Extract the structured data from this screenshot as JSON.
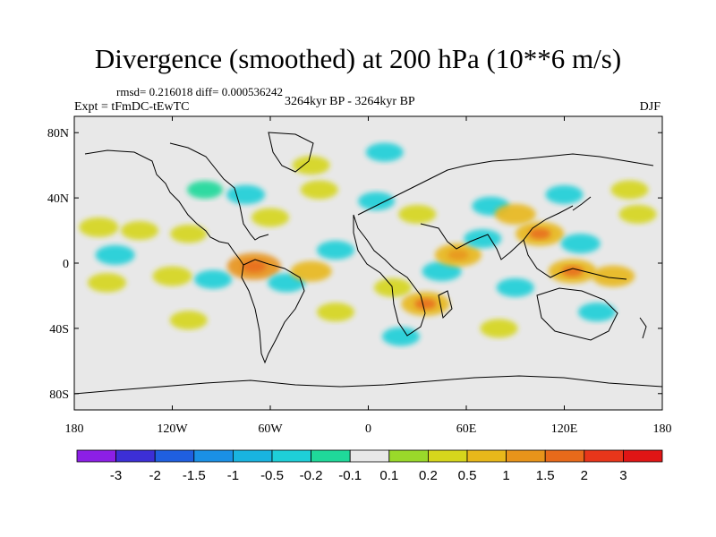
{
  "title": "Divergence (smoothed) at 200 hPa (10**6 m/s)",
  "stats": "rmsd= 0.216018  diff= 0.000536242",
  "experiment": "Expt = tFmDC-tEwTC",
  "period": "3264kyr BP - 3264kyr BP",
  "season": "DJF",
  "chart_data": {
    "type": "heatmap",
    "projection": "cylindrical equidistant",
    "xlim": [
      -180,
      180
    ],
    "ylim": [
      -90,
      90
    ],
    "x_ticks": [
      {
        "value": -180,
        "label": "180"
      },
      {
        "value": -120,
        "label": "120W"
      },
      {
        "value": -60,
        "label": "60W"
      },
      {
        "value": 0,
        "label": "0"
      },
      {
        "value": 60,
        "label": "60E"
      },
      {
        "value": 120,
        "label": "120E"
      },
      {
        "value": 180,
        "label": "180"
      }
    ],
    "y_ticks": [
      {
        "value": 80,
        "label": "80N"
      },
      {
        "value": 40,
        "label": "40N"
      },
      {
        "value": 0,
        "label": "0"
      },
      {
        "value": -40,
        "label": "40S"
      },
      {
        "value": -80,
        "label": "80S"
      }
    ],
    "colorbar": {
      "levels": [
        "-3",
        "-2",
        "-1.5",
        "-1",
        "-0.5",
        "-0.2",
        "-0.1",
        "0.1",
        "0.2",
        "0.5",
        "1",
        "1.5",
        "2",
        "3"
      ],
      "colors": [
        "#8c1fe6",
        "#3c2fd6",
        "#1f5fe0",
        "#1a90e6",
        "#19b4e0",
        "#1ecfd8",
        "#1fd99a",
        "#e8e8e8",
        "#9ad92a",
        "#d6d61c",
        "#e8b81a",
        "#e8941a",
        "#e86a1a",
        "#e8361a",
        "#e01515"
      ]
    },
    "features": [
      {
        "lon": -165,
        "lat": 22,
        "value": 0.4
      },
      {
        "lon": -140,
        "lat": 20,
        "value": 0.3
      },
      {
        "lon": -110,
        "lat": 18,
        "value": 0.25
      },
      {
        "lon": -155,
        "lat": 5,
        "value": -0.4
      },
      {
        "lon": -160,
        "lat": -12,
        "value": 0.35
      },
      {
        "lon": -120,
        "lat": -8,
        "value": 0.4
      },
      {
        "lon": -95,
        "lat": -10,
        "value": -0.3
      },
      {
        "lon": -70,
        "lat": -2,
        "value": 1.2
      },
      {
        "lon": -50,
        "lat": -12,
        "value": -0.3
      },
      {
        "lon": -35,
        "lat": -5,
        "value": 0.5
      },
      {
        "lon": -20,
        "lat": 8,
        "value": -0.3
      },
      {
        "lon": -60,
        "lat": 28,
        "value": 0.3
      },
      {
        "lon": -75,
        "lat": 42,
        "value": -0.35
      },
      {
        "lon": -100,
        "lat": 45,
        "value": -0.2
      },
      {
        "lon": -30,
        "lat": 45,
        "value": 0.3
      },
      {
        "lon": -35,
        "lat": 60,
        "value": 0.3
      },
      {
        "lon": 10,
        "lat": 68,
        "value": -0.3
      },
      {
        "lon": 5,
        "lat": 38,
        "value": -0.25
      },
      {
        "lon": 30,
        "lat": 30,
        "value": 0.3
      },
      {
        "lon": 15,
        "lat": -15,
        "value": 0.3
      },
      {
        "lon": 35,
        "lat": -25,
        "value": 0.9
      },
      {
        "lon": 45,
        "lat": -5,
        "value": -0.4
      },
      {
        "lon": 55,
        "lat": 5,
        "value": 0.8
      },
      {
        "lon": 70,
        "lat": 15,
        "value": -0.3
      },
      {
        "lon": 75,
        "lat": 35,
        "value": -0.3
      },
      {
        "lon": 90,
        "lat": 30,
        "value": 0.5
      },
      {
        "lon": 105,
        "lat": 18,
        "value": 0.9
      },
      {
        "lon": 130,
        "lat": 12,
        "value": -0.4
      },
      {
        "lon": 125,
        "lat": -5,
        "value": 0.9
      },
      {
        "lon": 150,
        "lat": -8,
        "value": 0.6
      },
      {
        "lon": 165,
        "lat": 30,
        "value": 0.3
      },
      {
        "lon": 120,
        "lat": 42,
        "value": -0.3
      },
      {
        "lon": 160,
        "lat": 45,
        "value": 0.3
      },
      {
        "lon": 90,
        "lat": -15,
        "value": -0.3
      },
      {
        "lon": 80,
        "lat": -40,
        "value": 0.3
      },
      {
        "lon": 140,
        "lat": -30,
        "value": -0.3
      },
      {
        "lon": -110,
        "lat": -35,
        "value": 0.3
      },
      {
        "lon": -20,
        "lat": -30,
        "value": 0.3
      },
      {
        "lon": 20,
        "lat": -45,
        "value": -0.3
      }
    ]
  }
}
